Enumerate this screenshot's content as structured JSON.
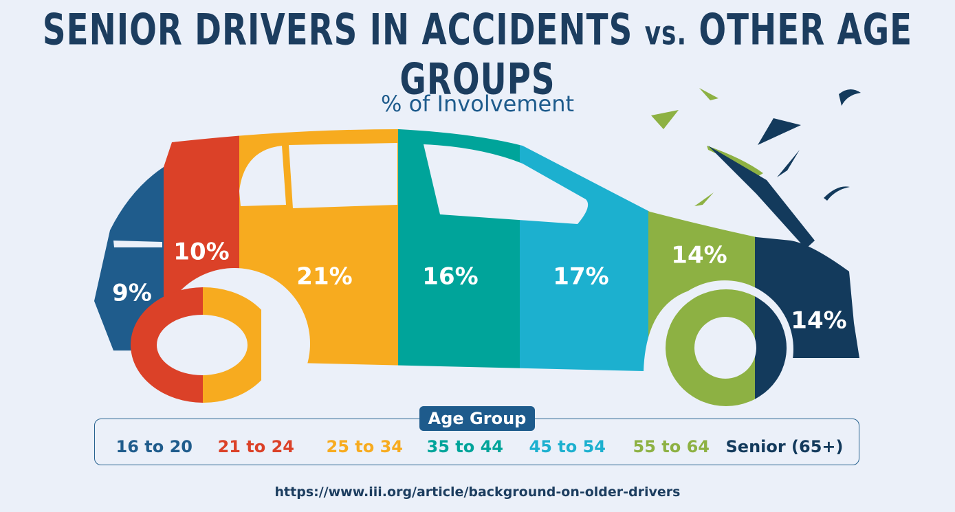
{
  "title_main": "SENIOR DRIVERS IN ACCIDENTS",
  "title_vs": "vs.",
  "title_end": "OTHER AGE GROUPS",
  "subtitle": "% of Involvement",
  "legend_title": "Age Group",
  "source": "https://www.iii.org/article/background-on-older-drivers",
  "colors": {
    "background": "#ebf0f9",
    "title": "#1c3d5f",
    "window": "#ebf0f9"
  },
  "chart_data": {
    "type": "pie",
    "title": "% of Involvement",
    "categories": [
      "16 to 20",
      "21 to 24",
      "25 to 34",
      "35 to 44",
      "45 to 54",
      "55 to 64",
      "Senior (65+)"
    ],
    "values": [
      9,
      10,
      21,
      16,
      17,
      14,
      14
    ],
    "labels": [
      "9%",
      "10%",
      "21%",
      "16%",
      "17%",
      "14%",
      "14%"
    ],
    "colors": [
      "#1f5c8c",
      "#db4128",
      "#f7ab1f",
      "#00a49a",
      "#1cb0cf",
      "#8db143",
      "#133a5c"
    ],
    "legend_placement": "bottom"
  }
}
